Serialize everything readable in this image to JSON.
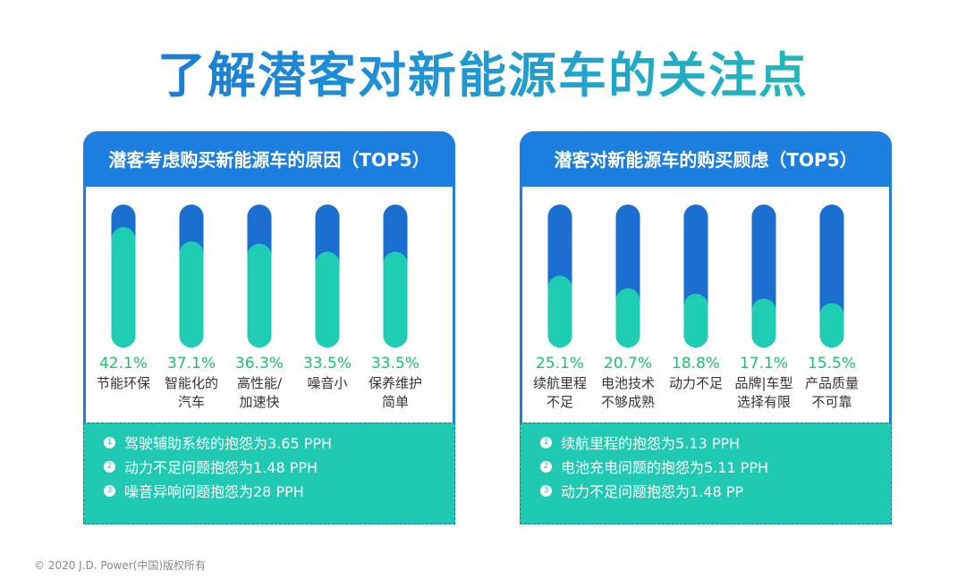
{
  "title": "了解潜客对新能源车的关注点",
  "footer": "© 2020 J.D. Power(中国)版权所有",
  "colors": {
    "header_blue": "#1c7fe0",
    "bar_track": "#1a6fd0",
    "bar_fill": "#1fcdb3",
    "percent_green": "#22c06a",
    "notes_teal": "#1fc9b2"
  },
  "panels": [
    {
      "header": "潜客考虑购买新能源车的原因（TOP5）",
      "notes": [
        {
          "num": "1",
          "text": "驾驶辅助系统的抱怨为3.65 PPH"
        },
        {
          "num": "2",
          "text": "动力不足问题抱怨为1.48 PPH"
        },
        {
          "num": "3",
          "text": "噪音异响问题抱怨为28 PPH"
        }
      ]
    },
    {
      "header": "潜客对新能源车的购买顾虑（TOP5）",
      "notes": [
        {
          "num": "1",
          "text": "续航里程的抱怨为5.13 PPH"
        },
        {
          "num": "2",
          "text": "电池充电问题的抱怨为5.11 PPH"
        },
        {
          "num": "3",
          "text": "动力不足问题抱怨为1.48 PP"
        }
      ]
    }
  ],
  "chart_data": [
    {
      "type": "bar",
      "title": "潜客考虑购买新能源车的原因（TOP5）",
      "categories": [
        [
          "节能环保"
        ],
        [
          "智能化的",
          "汽车"
        ],
        [
          "高性能/",
          "加速快"
        ],
        [
          "噪音小"
        ],
        [
          "保养维护",
          "简单"
        ]
      ],
      "values": [
        42.1,
        37.1,
        36.3,
        33.5,
        33.5
      ],
      "value_labels": [
        "42.1%",
        "37.1%",
        "36.3%",
        "33.5%",
        "33.5%"
      ],
      "unit": "%",
      "ylim": [
        0,
        50
      ]
    },
    {
      "type": "bar",
      "title": "潜客对新能源车的购买顾虑（TOP5）",
      "categories": [
        [
          "续航里程",
          "不足"
        ],
        [
          "电池技术",
          "不够成熟"
        ],
        [
          "动力不足"
        ],
        [
          "品牌|车型",
          "选择有限"
        ],
        [
          "产品质量",
          "不可靠"
        ]
      ],
      "values": [
        25.1,
        20.7,
        18.8,
        17.1,
        15.5
      ],
      "value_labels": [
        "25.1%",
        "20.7%",
        "18.8%",
        "17.1%",
        "15.5%"
      ],
      "unit": "%",
      "ylim": [
        0,
        50
      ]
    }
  ]
}
